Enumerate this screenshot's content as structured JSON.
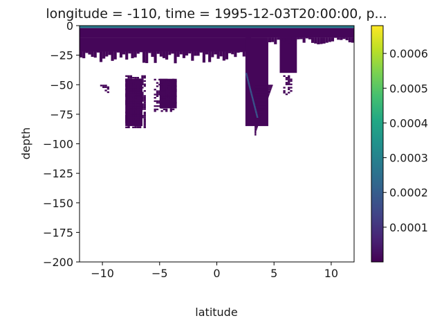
{
  "chart_data": {
    "type": "heatmap",
    "title": "longitude = -110, time = 1995-12-03T20:00:00, p...",
    "xlabel": "latitude",
    "ylabel": "depth",
    "xlim": [
      -12,
      12
    ],
    "ylim": [
      -200,
      0
    ],
    "x_ticks": [
      -10,
      -5,
      0,
      5,
      10
    ],
    "x_tick_labels": [
      "−10",
      "−5",
      "0",
      "5",
      "10"
    ],
    "y_ticks": [
      0,
      -25,
      -50,
      -75,
      -100,
      -125,
      -150,
      -175,
      -200
    ],
    "y_tick_labels": [
      "0",
      "−25",
      "−50",
      "−75",
      "−100",
      "−125",
      "−150",
      "−175",
      "−200"
    ],
    "colorbar": {
      "colormap": "viridis",
      "range": [
        0.0,
        0.00068
      ],
      "ticks": [
        0.0001,
        0.0002,
        0.0003,
        0.0004,
        0.0005,
        0.0006
      ],
      "tick_labels": [
        "0.0001",
        "0.0002",
        "0.0003",
        "0.0004",
        "0.0005",
        "0.0006"
      ]
    },
    "field": {
      "background_value": 1e-05,
      "surface_layer": {
        "depth_range": [
          0,
          -2
        ],
        "value": 0.00028
      },
      "regions": [
        {
          "lat": [
            -12,
            12
          ],
          "depth": [
            -2,
            -10
          ],
          "value": 1e-05
        },
        {
          "lat": [
            -12,
            3
          ],
          "depth": [
            -10,
            -22
          ],
          "value": 1e-05
        },
        {
          "lat": [
            2.5,
            4.5
          ],
          "depth": [
            -10,
            -85
          ],
          "value": 1e-05
        },
        {
          "lat": [
            5.5,
            7
          ],
          "depth": [
            -10,
            -40
          ],
          "value": 1e-05
        },
        {
          "lat": [
            -8,
            -6.5
          ],
          "depth": [
            -45,
            -85
          ],
          "value": 1e-05
        },
        {
          "lat": [
            -5,
            -3.5
          ],
          "depth": [
            -45,
            -70
          ],
          "value": 1e-05
        }
      ],
      "highlight_streak": {
        "lat": [
          2.5,
          3.5
        ],
        "depth": [
          -40,
          -78
        ],
        "value": 0.00018
      }
    }
  }
}
